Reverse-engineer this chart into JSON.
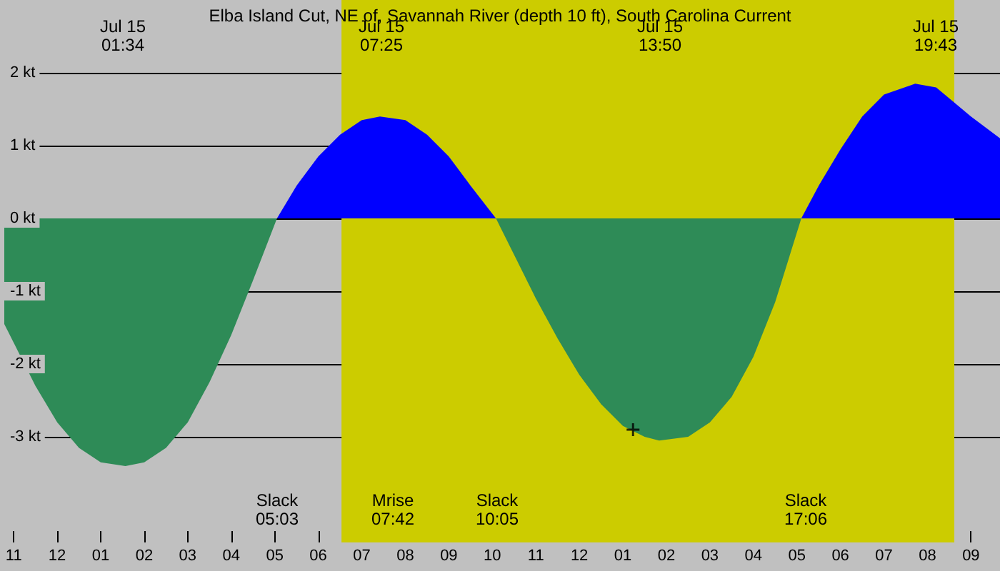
{
  "chart_data": {
    "type": "area",
    "title": "Elba Island Cut, NE of, Savannah River (depth 10 ft), South Carolina Current",
    "series": [
      {
        "color": "#2e8b57",
        "x": [
          "--07-14T22:47",
          "--07-14T23:30",
          "--07-15T00:00",
          "--07-15T00:30",
          "--07-15T01:00",
          "--07-15T01:34",
          "--07-15T02:00",
          "--07-15T02:30",
          "--07-15T03:00",
          "--07-15T03:30",
          "--07-15T04:00",
          "--07-15T04:30",
          "--07-15T05:03"
        ],
        "values": [
          -1.45,
          -2.3,
          -2.8,
          -3.15,
          -3.35,
          -3.4,
          -3.35,
          -3.15,
          -2.8,
          -2.25,
          -1.6,
          -0.85,
          0
        ]
      },
      {
        "color": "#0000ff",
        "x": [
          "--07-15T05:03",
          "--07-15T05:30",
          "--07-15T06:00",
          "--07-15T06:30",
          "--07-15T07:00",
          "--07-15T07:25",
          "--07-15T08:00",
          "--07-15T08:30",
          "--07-15T09:00",
          "--07-15T09:30",
          "--07-15T10:05"
        ],
        "values": [
          0,
          0.45,
          0.85,
          1.15,
          1.35,
          1.4,
          1.35,
          1.15,
          0.85,
          0.45,
          0
        ]
      },
      {
        "color": "#2e8b57",
        "x": [
          "--07-15T10:05",
          "--07-15T10:30",
          "--07-15T11:00",
          "--07-15T11:30",
          "--07-15T12:00",
          "--07-15T12:30",
          "--07-15T13:00",
          "--07-15T13:30",
          "--07-15T13:50",
          "--07-15T14:30",
          "--07-15T15:00",
          "--07-15T15:30",
          "--07-15T16:00",
          "--07-15T16:30",
          "--07-15T17:06"
        ],
        "values": [
          0,
          -0.5,
          -1.1,
          -1.65,
          -2.15,
          -2.55,
          -2.85,
          -3,
          -3.05,
          -3,
          -2.8,
          -2.45,
          -1.9,
          -1.15,
          0
        ]
      },
      {
        "color": "#0000ff",
        "x": [
          "--07-15T17:06",
          "--07-15T17:30",
          "--07-15T18:00",
          "--07-15T18:30",
          "--07-15T19:00",
          "--07-15T19:43",
          "--07-15T20:12",
          "--07-15T20:30",
          "--07-15T21:00",
          "--07-15T21:40"
        ],
        "values": [
          0,
          0.45,
          0.95,
          1.4,
          1.7,
          1.85,
          1.8,
          1.65,
          1.4,
          1.1
        ]
      },
      {
        "type": "scatter",
        "marker": "cross",
        "color": "#000000",
        "x": [
          "--07-15T13:14"
        ],
        "values": [
          -2.9
        ]
      }
    ],
    "xlim": [
      "--07-14T22:47",
      "--07-15T21:40"
    ],
    "xticks": [
      {
        "value": "--07-14T23:00",
        "label": "11"
      },
      {
        "value": "--07-15T00:00",
        "label": "12"
      },
      {
        "value": "--07-15T01:00",
        "label": "01"
      },
      {
        "value": "--07-15T02:00",
        "label": "02"
      },
      {
        "value": "--07-15T03:00",
        "label": "03"
      },
      {
        "value": "--07-15T04:00",
        "label": "04"
      },
      {
        "value": "--07-15T05:00",
        "label": "05"
      },
      {
        "value": "--07-15T06:00",
        "label": "06"
      },
      {
        "value": "--07-15T07:00",
        "label": "07"
      },
      {
        "value": "--07-15T08:00",
        "label": "08"
      },
      {
        "value": "--07-15T09:00",
        "label": "09"
      },
      {
        "value": "--07-15T10:00",
        "label": "10"
      },
      {
        "value": "--07-15T11:00",
        "label": "11"
      },
      {
        "value": "--07-15T12:00",
        "label": "12"
      },
      {
        "value": "--07-15T13:00",
        "label": "01"
      },
      {
        "value": "--07-15T14:00",
        "label": "02"
      },
      {
        "value": "--07-15T15:00",
        "label": "03"
      },
      {
        "value": "--07-15T16:00",
        "label": "04"
      },
      {
        "value": "--07-15T17:00",
        "label": "05"
      },
      {
        "value": "--07-15T18:00",
        "label": "06"
      },
      {
        "value": "--07-15T19:00",
        "label": "07"
      },
      {
        "value": "--07-15T20:00",
        "label": "08"
      },
      {
        "value": "--07-15T21:00",
        "label": "09"
      }
    ],
    "ylim": [
      -4.45,
      3
    ],
    "yticks": [
      {
        "value": 2,
        "label": "2 kt"
      },
      {
        "value": 1,
        "label": "1 kt"
      },
      {
        "value": 0,
        "label": "0 kt"
      },
      {
        "value": -1,
        "label": "-1 kt"
      },
      {
        "value": -2,
        "label": "-2 kt"
      },
      {
        "value": -3,
        "label": "-3 kt"
      }
    ],
    "grid": "y",
    "bands": [
      {
        "axis": "x",
        "from": "--07-15T06:32",
        "to": "--07-15T20:37",
        "color": "#cccc00"
      }
    ],
    "annotations": [
      "Jul 15\n01:34",
      "Jul 15\n07:25",
      "Jul 15\n13:50",
      "Jul 15\n19:43",
      "Slack\n05:03",
      "Mrise\n07:42",
      "Slack\n10:05",
      "Slack\n17:06"
    ]
  }
}
